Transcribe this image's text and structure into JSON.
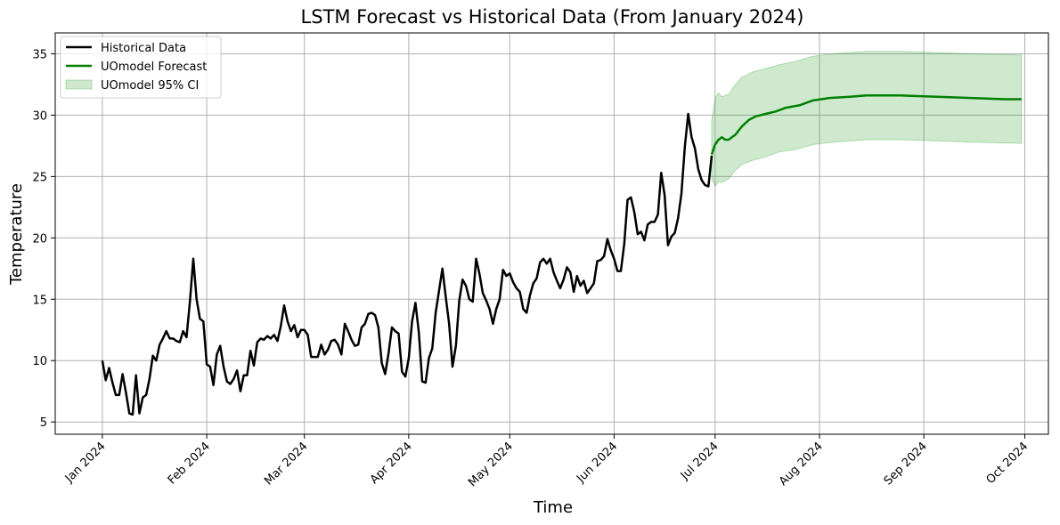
{
  "chart_data": {
    "type": "line",
    "title": "LSTM Forecast vs Historical Data (From January 2024)",
    "xlabel": "Time",
    "ylabel": "Temperature",
    "xlim": [
      "2023-12-18",
      "2024-10-08"
    ],
    "ylim": [
      4,
      36.7
    ],
    "grid": true,
    "legend_position": "top-left",
    "x_ticks": [
      {
        "date": "2024-01-01",
        "label": "Jan 2024"
      },
      {
        "date": "2024-02-01",
        "label": "Feb 2024"
      },
      {
        "date": "2024-03-01",
        "label": "Mar 2024"
      },
      {
        "date": "2024-04-01",
        "label": "Apr 2024"
      },
      {
        "date": "2024-05-01",
        "label": "May 2024"
      },
      {
        "date": "2024-06-01",
        "label": "Jun 2024"
      },
      {
        "date": "2024-07-01",
        "label": "Jul 2024"
      },
      {
        "date": "2024-08-01",
        "label": "Aug 2024"
      },
      {
        "date": "2024-09-01",
        "label": "Sep 2024"
      },
      {
        "date": "2024-10-01",
        "label": "Oct 2024"
      }
    ],
    "y_ticks": [
      5,
      10,
      15,
      20,
      25,
      30,
      35
    ],
    "series": [
      {
        "name": "Historical Data",
        "color": "#000000",
        "style": "line",
        "points": [
          [
            "2024-01-01",
            10.0
          ],
          [
            "2024-01-02",
            8.4
          ],
          [
            "2024-01-03",
            9.4
          ],
          [
            "2024-01-04",
            8.2
          ],
          [
            "2024-01-05",
            7.2
          ],
          [
            "2024-01-06",
            7.2
          ],
          [
            "2024-01-07",
            8.9
          ],
          [
            "2024-01-08",
            7.4
          ],
          [
            "2024-01-09",
            5.7
          ],
          [
            "2024-01-10",
            5.6
          ],
          [
            "2024-01-11",
            8.8
          ],
          [
            "2024-01-12",
            5.7
          ],
          [
            "2024-01-13",
            7.0
          ],
          [
            "2024-01-14",
            7.2
          ],
          [
            "2024-01-15",
            8.5
          ],
          [
            "2024-01-16",
            10.4
          ],
          [
            "2024-01-17",
            10.0
          ],
          [
            "2024-01-18",
            11.3
          ],
          [
            "2024-01-19",
            11.8
          ],
          [
            "2024-01-20",
            12.4
          ],
          [
            "2024-01-21",
            11.8
          ],
          [
            "2024-01-22",
            11.8
          ],
          [
            "2024-01-23",
            11.6
          ],
          [
            "2024-01-24",
            11.5
          ],
          [
            "2024-01-25",
            12.4
          ],
          [
            "2024-01-26",
            11.9
          ],
          [
            "2024-01-27",
            14.8
          ],
          [
            "2024-01-28",
            18.3
          ],
          [
            "2024-01-29",
            15.0
          ],
          [
            "2024-01-30",
            13.4
          ],
          [
            "2024-01-31",
            13.2
          ],
          [
            "2024-02-01",
            9.7
          ],
          [
            "2024-02-02",
            9.5
          ],
          [
            "2024-02-03",
            8.0
          ],
          [
            "2024-02-04",
            10.5
          ],
          [
            "2024-02-05",
            11.2
          ],
          [
            "2024-02-06",
            9.5
          ],
          [
            "2024-02-07",
            8.3
          ],
          [
            "2024-02-08",
            8.1
          ],
          [
            "2024-02-09",
            8.5
          ],
          [
            "2024-02-10",
            9.2
          ],
          [
            "2024-02-11",
            7.5
          ],
          [
            "2024-02-12",
            8.8
          ],
          [
            "2024-02-13",
            8.8
          ],
          [
            "2024-02-14",
            10.8
          ],
          [
            "2024-02-15",
            9.6
          ],
          [
            "2024-02-16",
            11.5
          ],
          [
            "2024-02-17",
            11.8
          ],
          [
            "2024-02-18",
            11.7
          ],
          [
            "2024-02-19",
            12.0
          ],
          [
            "2024-02-20",
            11.8
          ],
          [
            "2024-02-21",
            12.1
          ],
          [
            "2024-02-22",
            11.6
          ],
          [
            "2024-02-23",
            12.8
          ],
          [
            "2024-02-24",
            14.5
          ],
          [
            "2024-02-25",
            13.2
          ],
          [
            "2024-02-26",
            12.4
          ],
          [
            "2024-02-27",
            12.9
          ],
          [
            "2024-02-28",
            11.9
          ],
          [
            "2024-02-29",
            12.5
          ],
          [
            "2024-03-01",
            12.5
          ],
          [
            "2024-03-02",
            12.1
          ],
          [
            "2024-03-03",
            10.3
          ],
          [
            "2024-03-04",
            10.3
          ],
          [
            "2024-03-05",
            10.3
          ],
          [
            "2024-03-06",
            11.3
          ],
          [
            "2024-03-07",
            10.5
          ],
          [
            "2024-03-08",
            10.9
          ],
          [
            "2024-03-09",
            11.6
          ],
          [
            "2024-03-10",
            11.7
          ],
          [
            "2024-03-11",
            11.3
          ],
          [
            "2024-03-12",
            10.5
          ],
          [
            "2024-03-13",
            13.0
          ],
          [
            "2024-03-14",
            12.4
          ],
          [
            "2024-03-15",
            11.7
          ],
          [
            "2024-03-16",
            11.2
          ],
          [
            "2024-03-17",
            11.3
          ],
          [
            "2024-03-18",
            12.7
          ],
          [
            "2024-03-19",
            13.0
          ],
          [
            "2024-03-20",
            13.8
          ],
          [
            "2024-03-21",
            13.9
          ],
          [
            "2024-03-22",
            13.7
          ],
          [
            "2024-03-23",
            12.7
          ],
          [
            "2024-03-24",
            9.8
          ],
          [
            "2024-03-25",
            8.9
          ],
          [
            "2024-03-26",
            10.6
          ],
          [
            "2024-03-27",
            12.7
          ],
          [
            "2024-03-28",
            12.4
          ],
          [
            "2024-03-29",
            12.2
          ],
          [
            "2024-03-30",
            9.1
          ],
          [
            "2024-03-31",
            8.7
          ],
          [
            "2024-04-01",
            10.2
          ],
          [
            "2024-04-02",
            13.2
          ],
          [
            "2024-04-03",
            14.7
          ],
          [
            "2024-04-04",
            12.3
          ],
          [
            "2024-04-05",
            8.3
          ],
          [
            "2024-04-06",
            8.2
          ],
          [
            "2024-04-07",
            10.2
          ],
          [
            "2024-04-08",
            11.0
          ],
          [
            "2024-04-09",
            13.9
          ],
          [
            "2024-04-10",
            15.7
          ],
          [
            "2024-04-11",
            17.5
          ],
          [
            "2024-04-12",
            15.2
          ],
          [
            "2024-04-13",
            13.0
          ],
          [
            "2024-04-14",
            9.5
          ],
          [
            "2024-04-15",
            11.2
          ],
          [
            "2024-04-16",
            14.9
          ],
          [
            "2024-04-17",
            16.6
          ],
          [
            "2024-04-18",
            16.1
          ],
          [
            "2024-04-19",
            15.0
          ],
          [
            "2024-04-20",
            14.8
          ],
          [
            "2024-04-21",
            18.3
          ],
          [
            "2024-04-22",
            17.1
          ],
          [
            "2024-04-23",
            15.5
          ],
          [
            "2024-04-24",
            14.9
          ],
          [
            "2024-04-25",
            14.2
          ],
          [
            "2024-04-26",
            13.0
          ],
          [
            "2024-04-27",
            14.2
          ],
          [
            "2024-04-28",
            15.0
          ],
          [
            "2024-04-29",
            17.4
          ],
          [
            "2024-04-30",
            16.9
          ],
          [
            "2024-05-01",
            17.1
          ],
          [
            "2024-05-02",
            16.4
          ],
          [
            "2024-05-03",
            15.9
          ],
          [
            "2024-05-04",
            15.6
          ],
          [
            "2024-05-05",
            14.2
          ],
          [
            "2024-05-06",
            13.9
          ],
          [
            "2024-05-07",
            15.3
          ],
          [
            "2024-05-08",
            16.3
          ],
          [
            "2024-05-09",
            16.7
          ],
          [
            "2024-05-10",
            18.0
          ],
          [
            "2024-05-11",
            18.3
          ],
          [
            "2024-05-12",
            17.9
          ],
          [
            "2024-05-13",
            18.3
          ],
          [
            "2024-05-14",
            17.2
          ],
          [
            "2024-05-15",
            16.5
          ],
          [
            "2024-05-16",
            15.9
          ],
          [
            "2024-05-17",
            16.6
          ],
          [
            "2024-05-18",
            17.6
          ],
          [
            "2024-05-19",
            17.2
          ],
          [
            "2024-05-20",
            15.6
          ],
          [
            "2024-05-21",
            16.9
          ],
          [
            "2024-05-22",
            16.1
          ],
          [
            "2024-05-23",
            16.5
          ],
          [
            "2024-05-24",
            15.5
          ],
          [
            "2024-05-25",
            15.9
          ],
          [
            "2024-05-26",
            16.3
          ],
          [
            "2024-05-27",
            18.1
          ],
          [
            "2024-05-28",
            18.2
          ],
          [
            "2024-05-29",
            18.5
          ],
          [
            "2024-05-30",
            19.9
          ],
          [
            "2024-05-31",
            19.0
          ],
          [
            "2024-06-01",
            18.3
          ],
          [
            "2024-06-02",
            17.3
          ],
          [
            "2024-06-03",
            17.3
          ],
          [
            "2024-06-04",
            19.5
          ],
          [
            "2024-06-05",
            23.1
          ],
          [
            "2024-06-06",
            23.3
          ],
          [
            "2024-06-07",
            22.1
          ],
          [
            "2024-06-08",
            20.3
          ],
          [
            "2024-06-09",
            20.5
          ],
          [
            "2024-06-10",
            19.8
          ],
          [
            "2024-06-11",
            21.1
          ],
          [
            "2024-06-12",
            21.3
          ],
          [
            "2024-06-13",
            21.3
          ],
          [
            "2024-06-14",
            21.9
          ],
          [
            "2024-06-15",
            25.3
          ],
          [
            "2024-06-16",
            23.5
          ],
          [
            "2024-06-17",
            19.4
          ],
          [
            "2024-06-18",
            20.1
          ],
          [
            "2024-06-19",
            20.4
          ],
          [
            "2024-06-20",
            21.6
          ],
          [
            "2024-06-21",
            23.6
          ],
          [
            "2024-06-22",
            27.4
          ],
          [
            "2024-06-23",
            30.1
          ],
          [
            "2024-06-24",
            28.2
          ],
          [
            "2024-06-25",
            27.3
          ],
          [
            "2024-06-26",
            25.6
          ],
          [
            "2024-06-27",
            24.7
          ],
          [
            "2024-06-28",
            24.3
          ],
          [
            "2024-06-29",
            24.2
          ],
          [
            "2024-06-30",
            26.7
          ]
        ]
      },
      {
        "name": "UOmodel Forecast",
        "color": "#008000",
        "style": "line",
        "points": [
          [
            "2024-06-30",
            26.8
          ],
          [
            "2024-07-01",
            27.6
          ],
          [
            "2024-07-02",
            28.0
          ],
          [
            "2024-07-03",
            28.2
          ],
          [
            "2024-07-04",
            28.0
          ],
          [
            "2024-07-05",
            28.0
          ],
          [
            "2024-07-07",
            28.4
          ],
          [
            "2024-07-09",
            29.1
          ],
          [
            "2024-07-11",
            29.6
          ],
          [
            "2024-07-13",
            29.9
          ],
          [
            "2024-07-16",
            30.1
          ],
          [
            "2024-07-19",
            30.3
          ],
          [
            "2024-07-22",
            30.6
          ],
          [
            "2024-07-26",
            30.8
          ],
          [
            "2024-07-30",
            31.2
          ],
          [
            "2024-08-04",
            31.4
          ],
          [
            "2024-08-10",
            31.5
          ],
          [
            "2024-08-15",
            31.6
          ],
          [
            "2024-08-25",
            31.6
          ],
          [
            "2024-09-05",
            31.5
          ],
          [
            "2024-09-15",
            31.4
          ],
          [
            "2024-09-25",
            31.3
          ],
          [
            "2024-09-30",
            31.3
          ]
        ]
      },
      {
        "name": "UOmodel 95% CI",
        "color": "#2ca02c",
        "style": "band",
        "points": [
          [
            "2024-06-30",
            24.8,
            29.5
          ],
          [
            "2024-07-01",
            24.2,
            31.4
          ],
          [
            "2024-07-02",
            24.6,
            31.8
          ],
          [
            "2024-07-03",
            24.5,
            31.5
          ],
          [
            "2024-07-05",
            24.8,
            31.7
          ],
          [
            "2024-07-07",
            25.5,
            32.5
          ],
          [
            "2024-07-09",
            26.0,
            33.1
          ],
          [
            "2024-07-12",
            26.3,
            33.5
          ],
          [
            "2024-07-16",
            26.6,
            33.8
          ],
          [
            "2024-07-20",
            27.0,
            34.1
          ],
          [
            "2024-07-25",
            27.2,
            34.4
          ],
          [
            "2024-07-30",
            27.6,
            34.8
          ],
          [
            "2024-08-05",
            27.8,
            35.0
          ],
          [
            "2024-08-15",
            28.0,
            35.2
          ],
          [
            "2024-08-25",
            28.0,
            35.2
          ],
          [
            "2024-09-05",
            27.9,
            35.1
          ],
          [
            "2024-09-15",
            27.8,
            35.0
          ],
          [
            "2024-09-30",
            27.7,
            34.9
          ]
        ]
      }
    ]
  }
}
